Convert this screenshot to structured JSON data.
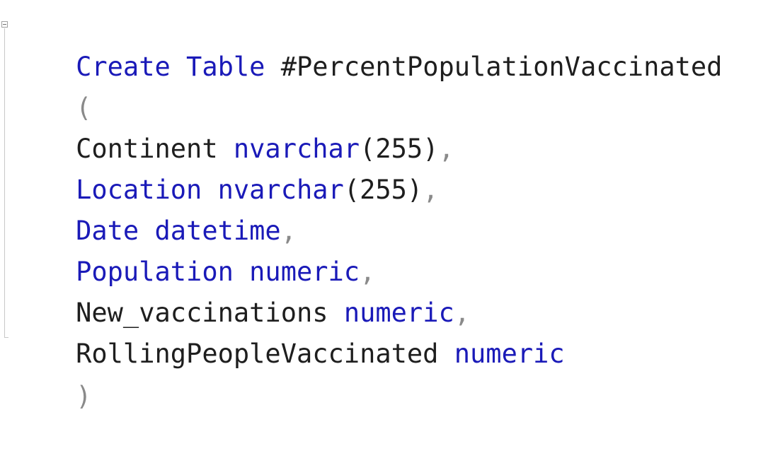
{
  "editor": {
    "lines": [
      {
        "kw1": "Create",
        "sp1": " ",
        "kw2": "Table",
        "sp2": " ",
        "name": "#PercentPopulationVaccinated"
      },
      {
        "paren": "("
      },
      {
        "col": "Continent",
        "sp": " ",
        "type": "nvarchar",
        "args": "(255)",
        "comma": ","
      },
      {
        "col": "Location",
        "sp": " ",
        "type": "nvarchar",
        "args": "(255)",
        "comma": ","
      },
      {
        "col": "Date",
        "sp": " ",
        "type": "datetime",
        "comma": ","
      },
      {
        "col": "Population",
        "sp": " ",
        "type": "numeric",
        "comma": ","
      },
      {
        "col": "New_vaccinations",
        "sp": " ",
        "type": "numeric",
        "comma": ","
      },
      {
        "col": "RollingPeopleVaccinated",
        "sp": " ",
        "type": "numeric"
      },
      {
        "paren": ")"
      }
    ]
  },
  "colors": {
    "keyword": "#1a1ab8",
    "identifier": "#1e1e1e",
    "punctuation": "#8a8a8a",
    "background": "#ffffff"
  }
}
